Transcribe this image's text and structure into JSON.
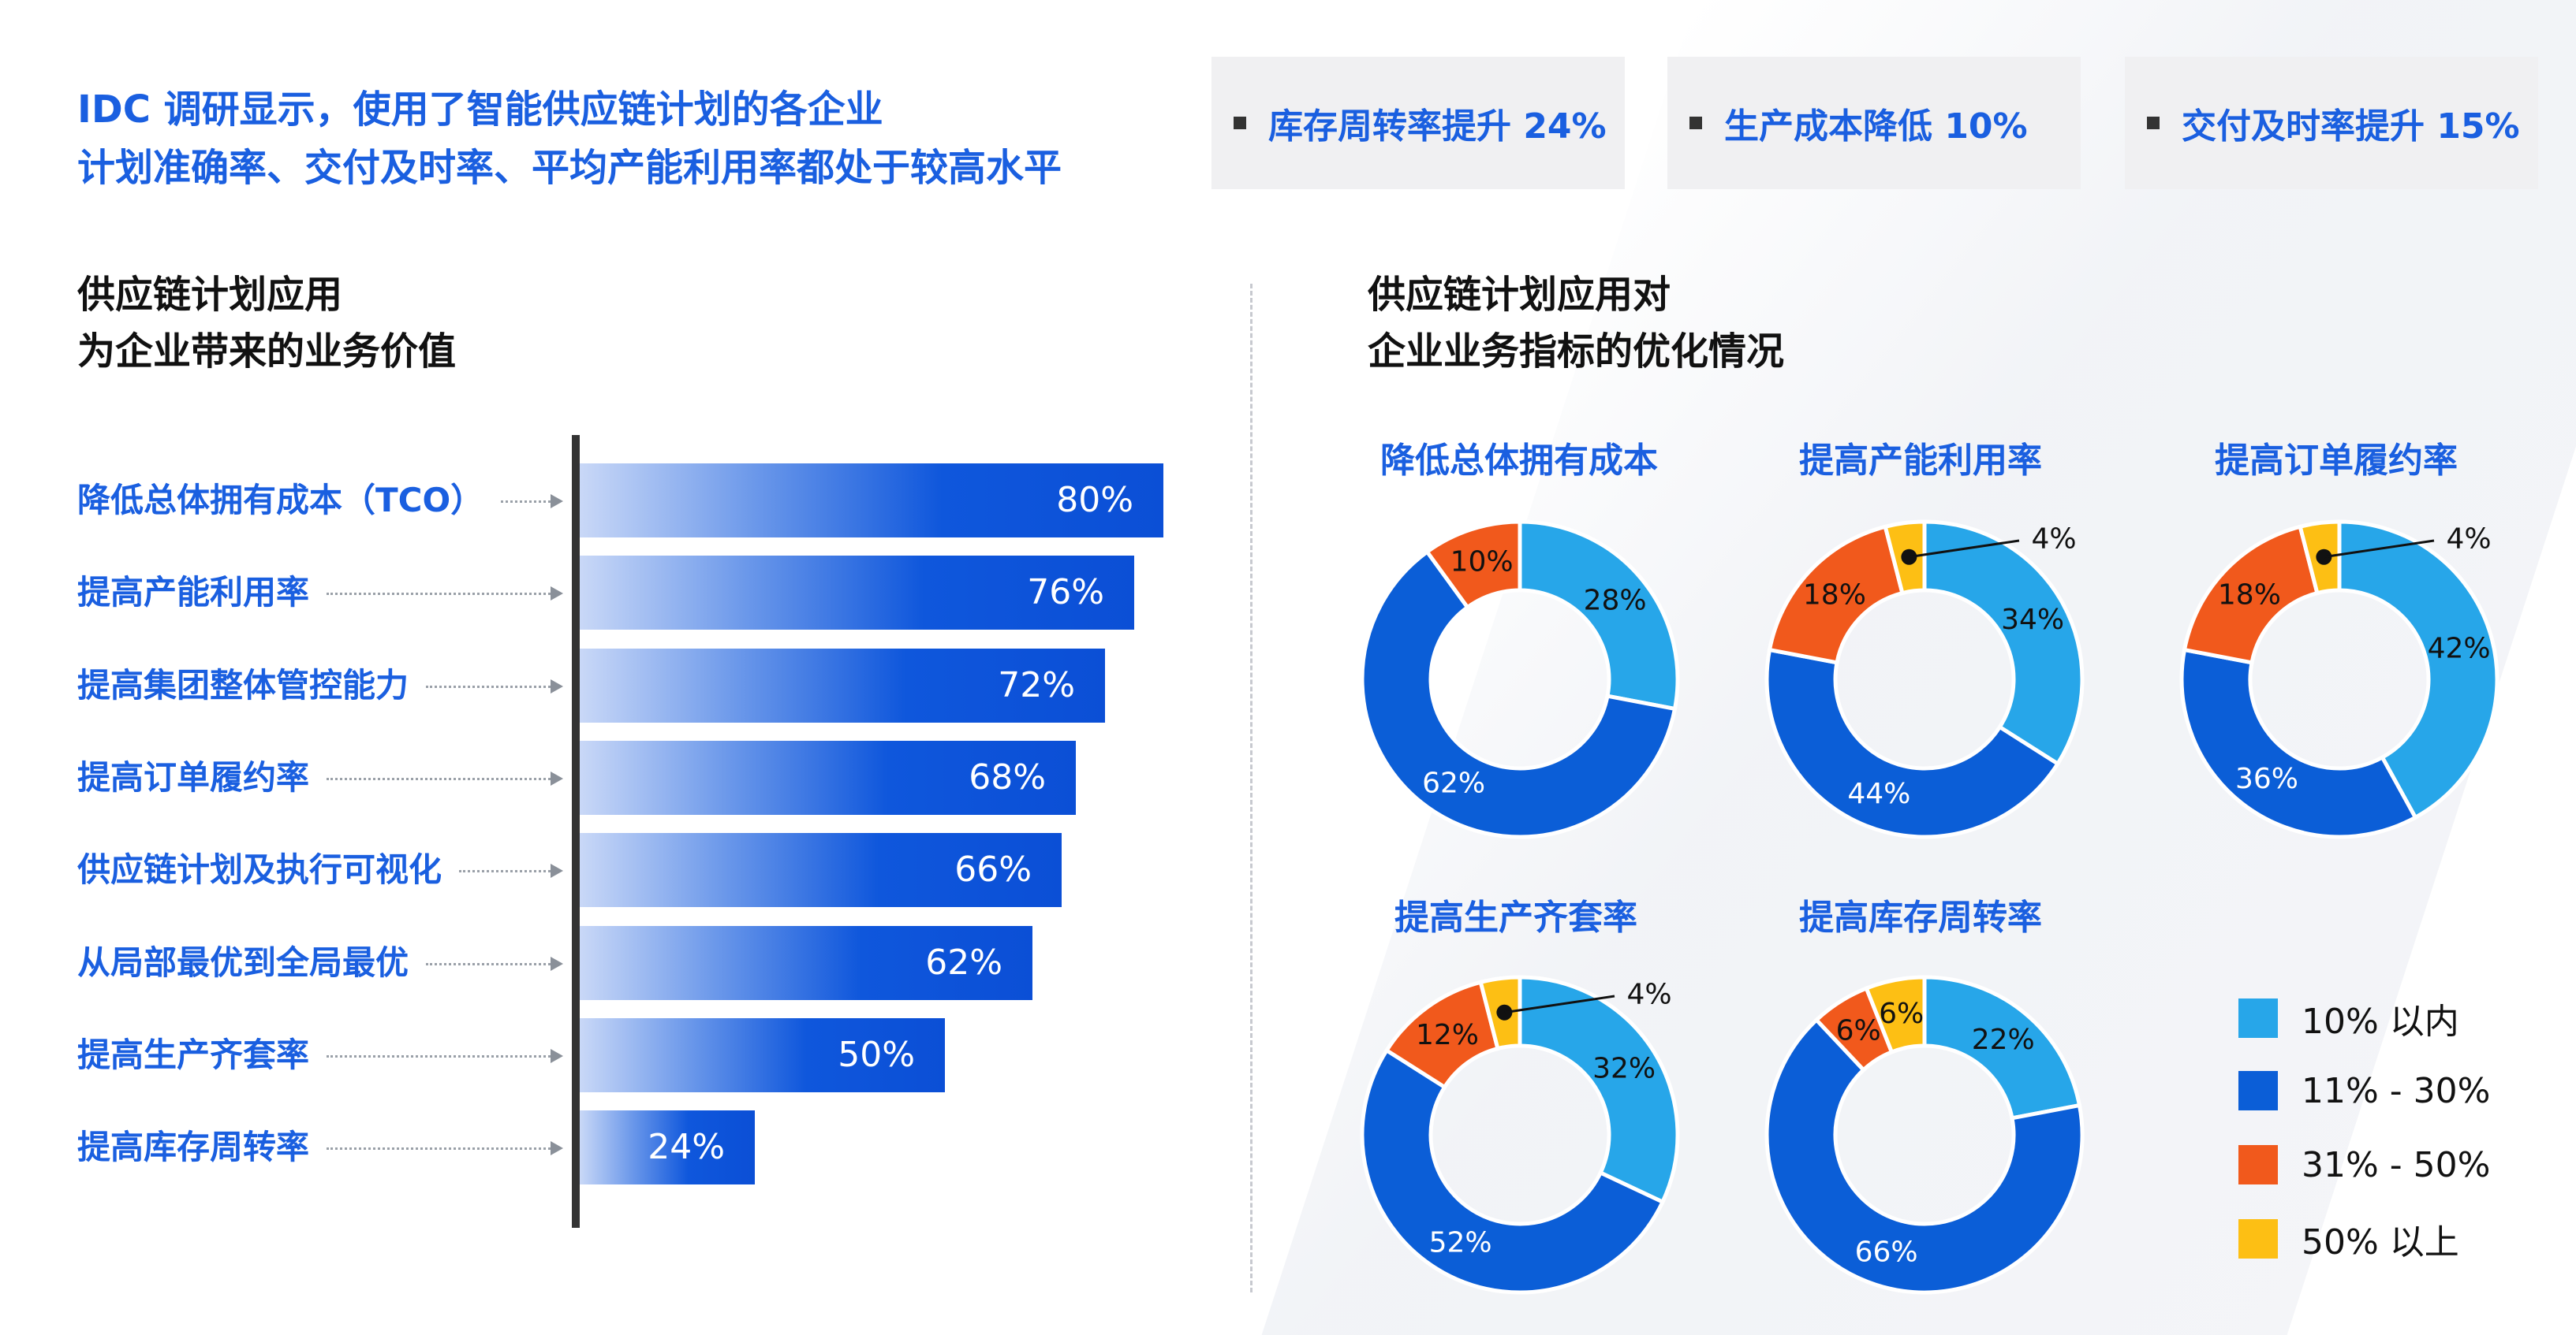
{
  "headline": {
    "line1": "IDC 调研显示，使用了智能供应链计划的各企业",
    "line2": "计划准确率、交付及时率、平均产能利用率都处于较高水平"
  },
  "kpis": [
    {
      "label": "库存周转率提升 24%"
    },
    {
      "label": "生产成本降低 10%"
    },
    {
      "label": "交付及时率提升 15%"
    }
  ],
  "left_section": {
    "title_line1": "供应链计划应用",
    "title_line2": "为企业带来的业务价值"
  },
  "right_section": {
    "title_line1": "供应链计划应用对",
    "title_line2": "企业业务指标的优化情况"
  },
  "colors": {
    "accent": "#1a5fe0",
    "legend": [
      "#27a6e9",
      "#0b5ed7",
      "#f1591c",
      "#fdbf14"
    ]
  },
  "legend": [
    "10% 以内",
    "11% - 30%",
    "31% - 50%",
    "50% 以上"
  ],
  "chart_data": [
    {
      "type": "bar",
      "orientation": "horizontal",
      "title": "供应链计划应用为企业带来的业务价值",
      "categories": [
        "降低总体拥有成本（TCO）",
        "提高产能利用率",
        "提高集团整体管控能力",
        "提高订单履约率",
        "供应链计划及执行可视化",
        "从局部最优到全局最优",
        "提高生产齐套率",
        "提高库存周转率"
      ],
      "values": [
        80,
        76,
        72,
        68,
        66,
        62,
        50,
        24
      ],
      "labels": [
        "80%",
        "76%",
        "72%",
        "68%",
        "66%",
        "62%",
        "50%",
        "24%"
      ],
      "xlim": [
        0,
        100
      ]
    },
    {
      "type": "pie",
      "variant": "donut",
      "title": "降低总体拥有成本",
      "categories": [
        "10% 以内",
        "11% - 30%",
        "31% - 50%",
        "50% 以上"
      ],
      "values": [
        28,
        62,
        10,
        0
      ],
      "labels": [
        "28%",
        "62%",
        "10%",
        ""
      ]
    },
    {
      "type": "pie",
      "variant": "donut",
      "title": "提高产能利用率",
      "categories": [
        "10% 以内",
        "11% - 30%",
        "31% - 50%",
        "50% 以上"
      ],
      "values": [
        34,
        44,
        18,
        4
      ],
      "labels": [
        "34%",
        "44%",
        "18%",
        "4%"
      ]
    },
    {
      "type": "pie",
      "variant": "donut",
      "title": "提高订单履约率",
      "categories": [
        "10% 以内",
        "11% - 30%",
        "31% - 50%",
        "50% 以上"
      ],
      "values": [
        42,
        36,
        18,
        4
      ],
      "labels": [
        "42%",
        "36%",
        "18%",
        "4%"
      ]
    },
    {
      "type": "pie",
      "variant": "donut",
      "title": "提高生产齐套率",
      "categories": [
        "10% 以内",
        "11% - 30%",
        "31% - 50%",
        "50% 以上"
      ],
      "values": [
        32,
        52,
        12,
        4
      ],
      "labels": [
        "32%",
        "52%",
        "12%",
        "4%"
      ]
    },
    {
      "type": "pie",
      "variant": "donut",
      "title": "提高库存周转率",
      "categories": [
        "10% 以内",
        "11% - 30%",
        "31% - 50%",
        "50% 以上"
      ],
      "values": [
        22,
        66,
        6,
        6
      ],
      "labels": [
        "22%",
        "66%",
        "6%",
        "6%"
      ]
    }
  ]
}
